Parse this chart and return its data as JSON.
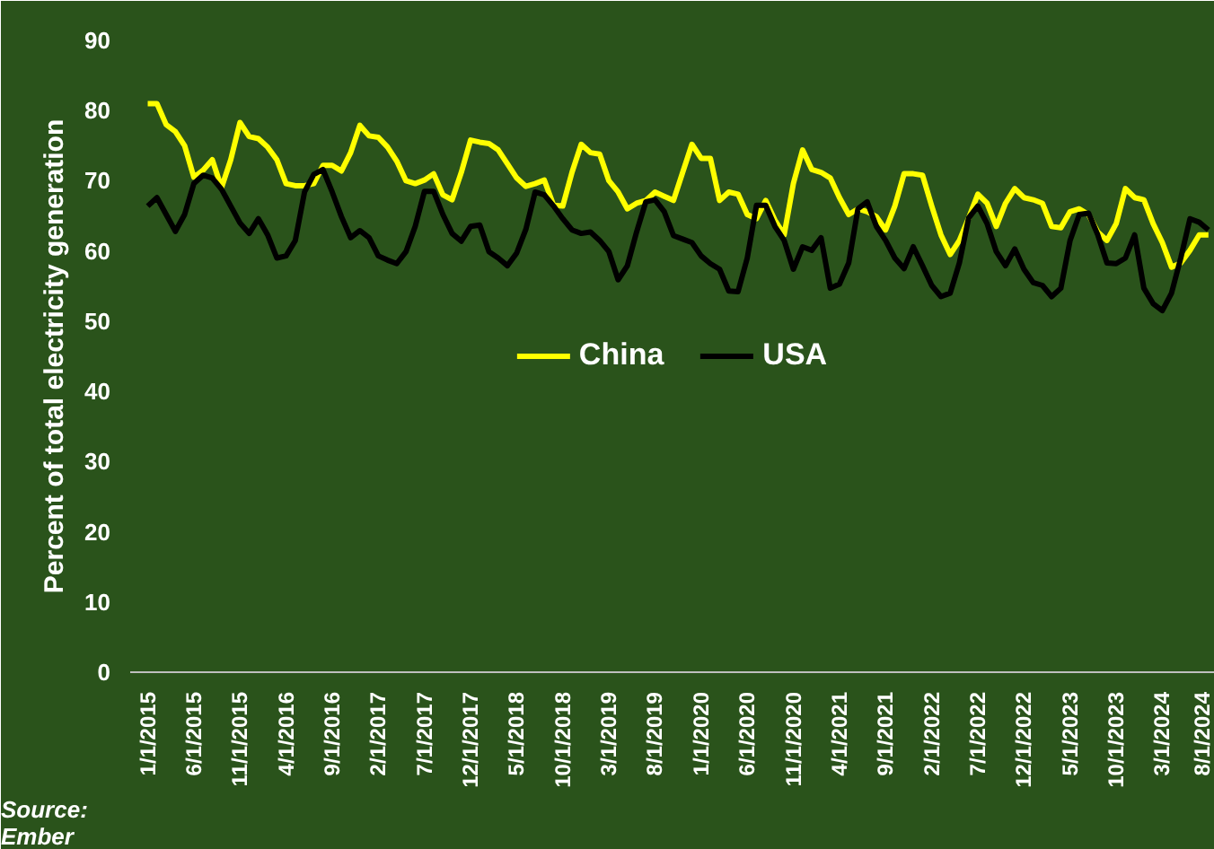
{
  "chart_data": {
    "type": "line",
    "ylabel": "Percent of total electricity generation",
    "annotations": [
      "Source:\nEmber"
    ],
    "categories": [
      "1/1/2015",
      null,
      null,
      null,
      null,
      "6/1/2015",
      null,
      null,
      null,
      null,
      "11/1/2015",
      null,
      null,
      null,
      null,
      "4/1/2016",
      null,
      null,
      null,
      null,
      "9/1/2016",
      null,
      null,
      null,
      null,
      "2/1/2017",
      null,
      null,
      null,
      null,
      "7/1/2017",
      null,
      null,
      null,
      null,
      "12/1/2017",
      null,
      null,
      null,
      null,
      "5/1/2018",
      null,
      null,
      null,
      null,
      "10/1/2018",
      null,
      null,
      null,
      null,
      "3/1/2019",
      null,
      null,
      null,
      null,
      "8/1/2019",
      null,
      null,
      null,
      null,
      "1/1/2020",
      null,
      null,
      null,
      null,
      "6/1/2020",
      null,
      null,
      null,
      null,
      "11/1/2020",
      null,
      null,
      null,
      null,
      "4/1/2021",
      null,
      null,
      null,
      null,
      "9/1/2021",
      null,
      null,
      null,
      null,
      "2/1/2022",
      null,
      null,
      null,
      null,
      "7/1/2022",
      null,
      null,
      null,
      null,
      "12/1/2022",
      null,
      null,
      null,
      null,
      "5/1/2023",
      null,
      null,
      null,
      null,
      "10/1/2023",
      null,
      null,
      null,
      null,
      "3/1/2024",
      null,
      null,
      null,
      null,
      "8/1/2024"
    ],
    "series": [
      {
        "name": "China",
        "color": "#ffff00",
        "values": [
          81,
          81,
          78,
          77,
          75,
          70.5,
          71.5,
          73,
          69,
          73,
          78.3,
          76.3,
          76,
          74.8,
          73,
          69.6,
          69.3,
          69.3,
          69.6,
          72.2,
          72.2,
          71.4,
          74,
          77.9,
          76.4,
          76.2,
          74.8,
          72.8,
          70,
          69.6,
          70.1,
          71,
          68,
          67.3,
          71.2,
          75.8,
          75.5,
          75.3,
          74.4,
          72.4,
          70.4,
          69.2,
          69.6,
          70.1,
          66.5,
          66.4,
          71.2,
          75.2,
          74,
          73.8,
          70,
          68.4,
          66,
          66.8,
          67.2,
          68.4,
          67.8,
          67.2,
          71.2,
          75.2,
          73.2,
          73.2,
          67.2,
          68.4,
          68.1,
          65.2,
          64.6,
          67.2,
          64.4,
          62.3,
          69.6,
          74.4,
          71.6,
          71.2,
          70.4,
          67.6,
          65.2,
          66,
          65.6,
          64.9,
          63,
          66.4,
          71,
          71,
          70.8,
          66.4,
          62.3,
          59.5,
          61.5,
          64.7,
          68.1,
          66.8,
          63.5,
          66.8,
          68.9,
          67.6,
          67.3,
          66.8,
          63.5,
          63.3,
          65.6,
          66,
          65.2,
          62.7,
          61.5,
          63.9,
          68.9,
          67.6,
          67.3,
          63.9,
          61.2,
          57.7,
          58.3,
          60.1,
          62.3,
          62.3
        ]
      },
      {
        "name": "USA",
        "color": "#000000",
        "values": [
          66.4,
          67.6,
          65.2,
          62.8,
          65.2,
          69.6,
          70.8,
          70.4,
          68.8,
          66.4,
          64,
          62.5,
          64.6,
          62.3,
          59,
          59.3,
          61.5,
          68.4,
          70.9,
          71.6,
          68.4,
          64.9,
          61.9,
          62.9,
          61.9,
          59.3,
          58.7,
          58.2,
          59.9,
          63.5,
          68.5,
          68.5,
          65.2,
          62.5,
          61.4,
          63.5,
          63.7,
          59.9,
          59,
          57.9,
          59.7,
          63.1,
          68.4,
          68,
          66.4,
          64.6,
          63,
          62.5,
          62.7,
          61.5,
          59.9,
          55.9,
          57.9,
          62.7,
          67,
          67.3,
          65.6,
          62.2,
          61.7,
          61.2,
          59.3,
          58.2,
          57.4,
          54.3,
          54.2,
          59,
          66.5,
          66.5,
          63.5,
          61.5,
          57.4,
          60.6,
          60.1,
          61.9,
          54.7,
          55.3,
          58.3,
          66,
          67,
          63.5,
          61.5,
          59,
          57.5,
          60.6,
          57.9,
          55.1,
          53.5,
          54,
          58.3,
          64.7,
          66.4,
          63.9,
          59.9,
          57.9,
          60.3,
          57.4,
          55.5,
          55.1,
          53.5,
          54.7,
          61.5,
          65.2,
          65.4,
          62.3,
          58.3,
          58.2,
          59,
          62.3,
          54.7,
          52.5,
          51.5,
          54,
          59,
          64.6,
          64.1,
          63
        ]
      }
    ],
    "ylim": [
      0,
      90
    ],
    "yticks": [
      0,
      10,
      20,
      30,
      40,
      50,
      60,
      70,
      80,
      90
    ],
    "grid": false,
    "legend": "center",
    "marker": "none",
    "line_style": "solid"
  }
}
